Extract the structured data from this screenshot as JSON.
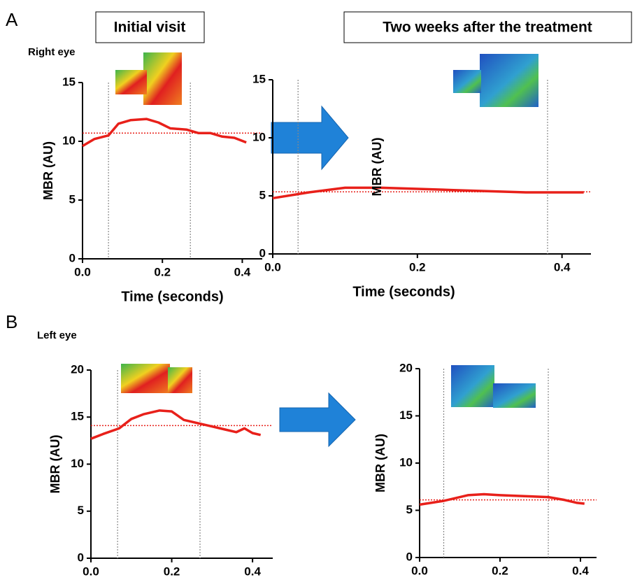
{
  "figure": {
    "panels": [
      "A",
      "B"
    ],
    "columns": [
      "Initial visit",
      "Two weeks after the treatment"
    ],
    "rows": [
      "Right eye",
      "Left eye"
    ]
  },
  "chart_data": [
    {
      "type": "line",
      "ylabel": "MBR (AU)",
      "xlabel": "Time (seconds)",
      "x": [
        0,
        0.03,
        0.065,
        0.09,
        0.12,
        0.16,
        0.19,
        0.22,
        0.26,
        0.29,
        0.32,
        0.35,
        0.38,
        0.41
      ],
      "series": [
        {
          "color": "#e8201a",
          "values": [
            9.6,
            10.2,
            10.5,
            11.5,
            11.8,
            11.9,
            11.6,
            11.1,
            11.0,
            10.7,
            10.7,
            10.4,
            10.3,
            9.9
          ]
        }
      ],
      "reference": 10.7,
      "markers": [
        0.065,
        0.27
      ],
      "xlim": [
        0,
        0.45
      ],
      "xticks": [
        {
          "value": 0,
          "label": "0.0"
        },
        {
          "value": 0.2,
          "label": "0.2"
        },
        {
          "value": 0.4,
          "label": "0.4"
        }
      ],
      "ylim": [
        0,
        15
      ],
      "yticks": [
        0,
        5,
        10,
        15
      ]
    },
    {
      "type": "line",
      "ylabel": "MBR (AU)",
      "xlabel": "Time (seconds)",
      "x": [
        0,
        0.05,
        0.1,
        0.15,
        0.2,
        0.25,
        0.3,
        0.35,
        0.4,
        0.43
      ],
      "series": [
        {
          "color": "#e8201a",
          "values": [
            4.8,
            5.3,
            5.7,
            5.7,
            5.6,
            5.5,
            5.4,
            5.3,
            5.3,
            5.3
          ]
        }
      ],
      "reference": 5.35,
      "markers": [
        0.035,
        0.38
      ],
      "xlim": [
        0,
        0.44
      ],
      "xticks": [
        {
          "value": 0,
          "label": "0.0"
        },
        {
          "value": 0.2,
          "label": "0.2"
        },
        {
          "value": 0.4,
          "label": "0.4"
        }
      ],
      "ylim": [
        0,
        15
      ],
      "yticks": [
        0,
        5,
        10,
        15
      ]
    },
    {
      "type": "line",
      "ylabel": "MBR (AU)",
      "x": [
        0,
        0.03,
        0.07,
        0.1,
        0.13,
        0.17,
        0.2,
        0.23,
        0.27,
        0.3,
        0.33,
        0.36,
        0.38,
        0.4,
        0.42
      ],
      "series": [
        {
          "color": "#e8201a",
          "values": [
            12.7,
            13.2,
            13.8,
            14.8,
            15.3,
            15.7,
            15.6,
            14.7,
            14.3,
            14.0,
            13.7,
            13.4,
            13.8,
            13.3,
            13.1
          ]
        }
      ],
      "reference": 14.1,
      "markers": [
        0.066,
        0.27
      ],
      "xlim": [
        0,
        0.45
      ],
      "xticks": [
        {
          "value": 0,
          "label": "0.0"
        },
        {
          "value": 0.2,
          "label": "0.2"
        },
        {
          "value": 0.4,
          "label": "0.4"
        }
      ],
      "ylim": [
        0,
        20
      ],
      "yticks": [
        0,
        5,
        10,
        15,
        20
      ]
    },
    {
      "type": "line",
      "ylabel": "MBR (AU)",
      "x": [
        0,
        0.06,
        0.12,
        0.16,
        0.2,
        0.26,
        0.32,
        0.36,
        0.39,
        0.41
      ],
      "series": [
        {
          "color": "#e8201a",
          "values": [
            5.6,
            6.0,
            6.6,
            6.7,
            6.6,
            6.5,
            6.4,
            6.1,
            5.8,
            5.7
          ]
        }
      ],
      "reference": 6.1,
      "markers": [
        0.06,
        0.32
      ],
      "xlim": [
        0,
        0.44
      ],
      "xticks": [
        {
          "value": 0,
          "label": "0.0"
        },
        {
          "value": 0.2,
          "label": "0.2"
        },
        {
          "value": 0.4,
          "label": "0.4"
        }
      ],
      "ylim": [
        0,
        20
      ],
      "yticks": [
        0,
        5,
        10,
        15,
        20
      ]
    }
  ]
}
